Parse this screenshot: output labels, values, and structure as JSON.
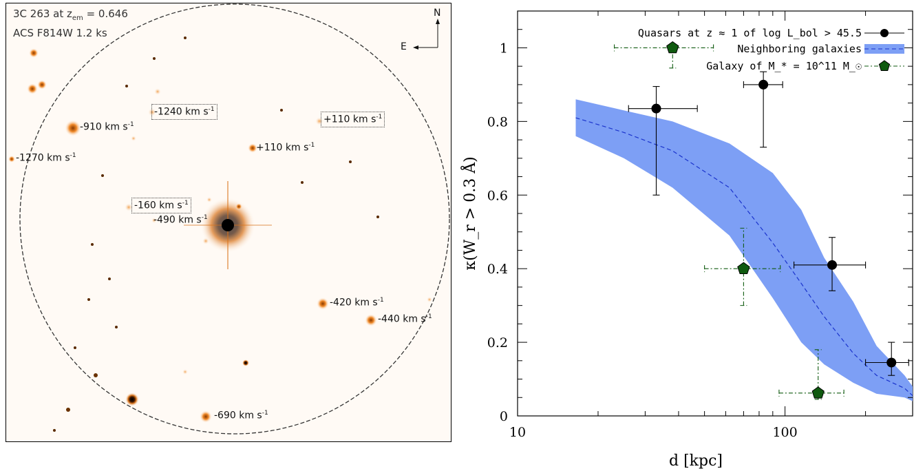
{
  "left_panel": {
    "header_line1": "3C 263 at z",
    "header_sub": "em",
    "header_line1_val": " = 0.646",
    "header_line2": "ACS F814W 1.2 ks",
    "compass_n": "N",
    "compass_e": "E",
    "labels": [
      {
        "text": "-1240 km s",
        "boxed": true
      },
      {
        "text": "+110 km s",
        "boxed": true
      },
      {
        "text": "-910 km s",
        "boxed": false
      },
      {
        "text": "+110 km s",
        "boxed": false
      },
      {
        "text": "-1270 km s",
        "boxed": false
      },
      {
        "text": "-160 km s",
        "boxed": true
      },
      {
        "text": "-490 km s",
        "boxed": false
      },
      {
        "text": "-420 km s",
        "boxed": false
      },
      {
        "text": "-440 km s",
        "boxed": false
      },
      {
        "text": "-690 km s",
        "boxed": false
      }
    ],
    "unit_sup": "-1"
  },
  "chart_data": {
    "type": "scatter",
    "xscale": "log",
    "xlim": [
      10,
      300
    ],
    "ylim": [
      0,
      1.1
    ],
    "xlabel": "d  [kpc]",
    "ylabel": "κ(W_r > 0.3 Å)",
    "xticks": [
      10,
      100
    ],
    "xtick_labels": [
      "10",
      "100"
    ],
    "yticks": [
      0,
      0.2,
      0.4,
      0.6,
      0.8,
      1
    ],
    "ytick_labels": [
      "0",
      "0.2",
      "0.4",
      "0.6",
      "0.8",
      "1"
    ],
    "legend_position": "top-right",
    "series": [
      {
        "name": "Quasars at z ≈ 1 of log L_bol > 45.5",
        "color": "#000000",
        "marker": "circle",
        "points": [
          {
            "x": 33,
            "y": 0.835,
            "xerr": [
              26,
              47
            ],
            "yerr": [
              0.6,
              0.895
            ]
          },
          {
            "x": 83,
            "y": 0.9,
            "xerr": [
              70,
              98
            ],
            "yerr": [
              0.73,
              0.935
            ]
          },
          {
            "x": 150,
            "y": 0.41,
            "xerr": [
              108,
              200
            ],
            "yerr": [
              0.34,
              0.485
            ]
          },
          {
            "x": 250,
            "y": 0.145,
            "xerr": [
              200,
              290
            ],
            "yerr": [
              0.11,
              0.2
            ]
          }
        ]
      },
      {
        "name": "Neighboring galaxies",
        "color": "#7d9ff5",
        "line_color": "#1a33cc",
        "type": "band",
        "x": [
          16.5,
          25,
          38,
          62,
          90,
          115,
          140,
          180,
          220,
          280,
          340
        ],
        "y_mid": [
          0.81,
          0.77,
          0.72,
          0.62,
          0.47,
          0.36,
          0.27,
          0.17,
          0.11,
          0.075,
          0.055
        ],
        "y_low": [
          0.76,
          0.7,
          0.62,
          0.49,
          0.32,
          0.2,
          0.14,
          0.09,
          0.06,
          0.05,
          0.04
        ],
        "y_high": [
          0.86,
          0.83,
          0.8,
          0.74,
          0.66,
          0.56,
          0.43,
          0.31,
          0.19,
          0.11,
          0.08
        ]
      },
      {
        "name": "Galaxy of M_* = 10^11 M_☉",
        "color": "#0f5a0f",
        "marker": "pentagon",
        "points": [
          {
            "x": 38,
            "y": 1.0,
            "xerr": [
              23,
              54
            ],
            "yerr": [
              0.945,
              1.0
            ]
          },
          {
            "x": 70,
            "y": 0.4,
            "xerr": [
              50,
              96
            ],
            "yerr": [
              0.3,
              0.51
            ]
          },
          {
            "x": 133,
            "y": 0.062,
            "xerr": [
              95,
              166
            ],
            "yerr": [
              0.045,
              0.18
            ]
          }
        ]
      }
    ]
  }
}
